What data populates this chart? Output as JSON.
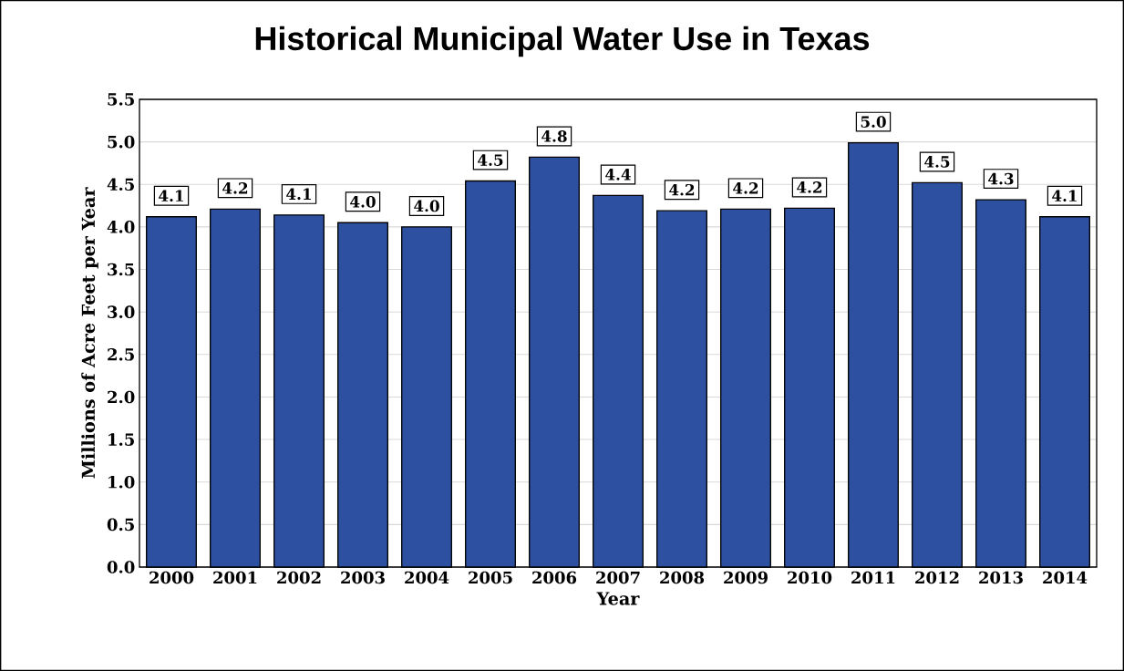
{
  "chart_data": {
    "type": "bar",
    "title": "Historical Municipal Water Use in Texas",
    "xlabel": "Year",
    "ylabel": "Millions of Acre Feet per Year",
    "categories": [
      "2000",
      "2001",
      "2002",
      "2003",
      "2004",
      "2005",
      "2006",
      "2007",
      "2008",
      "2009",
      "2010",
      "2011",
      "2012",
      "2013",
      "2014"
    ],
    "values": [
      4.12,
      4.21,
      4.14,
      4.05,
      4.0,
      4.54,
      4.82,
      4.37,
      4.19,
      4.21,
      4.22,
      4.99,
      4.52,
      4.32,
      4.12
    ],
    "value_labels": [
      "4.1",
      "4.2",
      "4.1",
      "4.0",
      "4.0",
      "4.5",
      "4.8",
      "4.4",
      "4.2",
      "4.2",
      "4.2",
      "5.0",
      "4.5",
      "4.3",
      "4.1"
    ],
    "color": "#2e50a0",
    "ylim": [
      0,
      5.5
    ],
    "yticks": [
      {
        "value": 0,
        "label": "0.0"
      },
      {
        "value": 0.5,
        "label": "0.5"
      },
      {
        "value": 1,
        "label": "1.0"
      },
      {
        "value": 1.5,
        "label": "1.5"
      },
      {
        "value": 2,
        "label": "2.0"
      },
      {
        "value": 2.5,
        "label": "2.5"
      },
      {
        "value": 3,
        "label": "3.0"
      },
      {
        "value": 3.5,
        "label": "3.5"
      },
      {
        "value": 4,
        "label": "4.0"
      },
      {
        "value": 4.5,
        "label": "4.5"
      },
      {
        "value": 5,
        "label": "5.0"
      },
      {
        "value": 5.5,
        "label": "5.5"
      }
    ],
    "grid": "y"
  }
}
